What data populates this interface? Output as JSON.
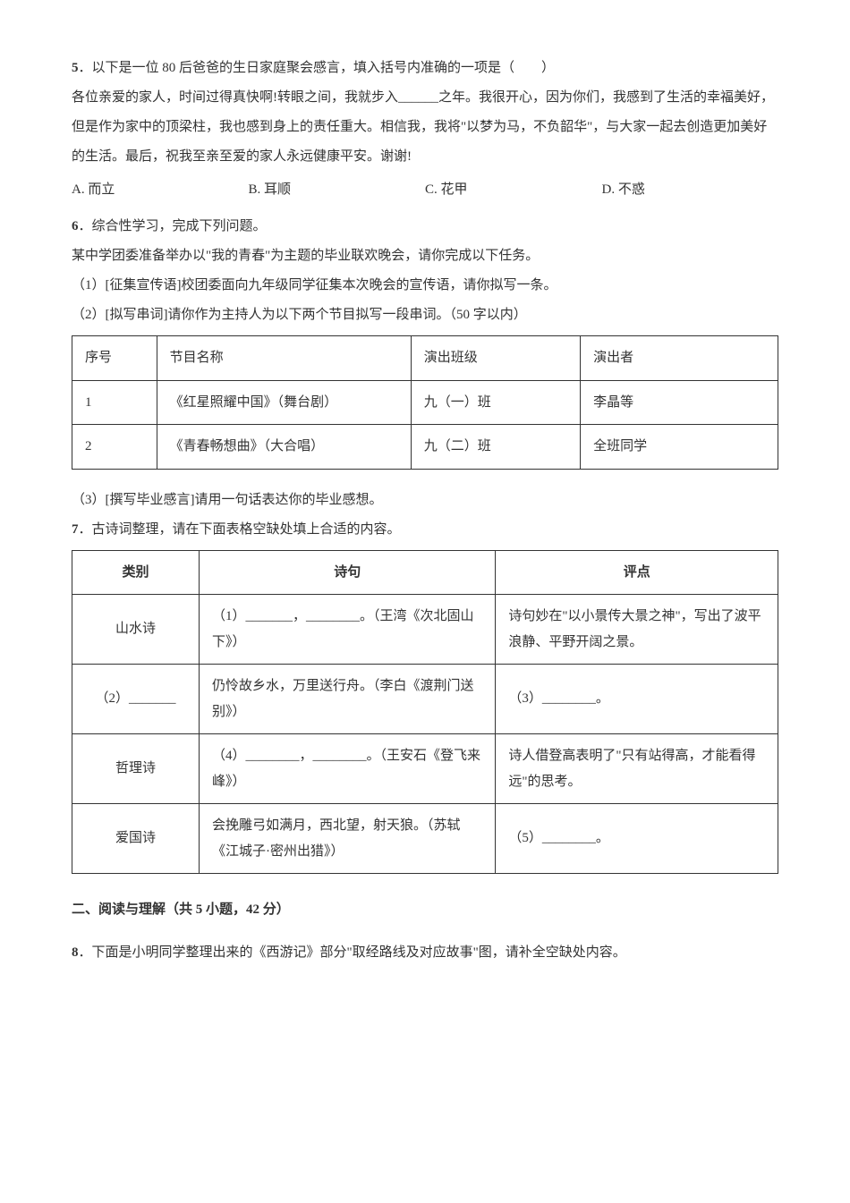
{
  "q5": {
    "num": "5",
    "stem": "．以下是一位 80 后爸爸的生日家庭聚会感言，填入括号内准确的一项是（　　）",
    "passage_1": "各位亲爱的家人，时间过得真快啊!转眼之间，我就步入______之年。我很开心，因为你们，我感到了生活的幸福美好，但是作为家中的顶梁柱，我也感到身上的责任重大。相信我，我将\"以梦为马，不负韶华\"，与大家一起去创造更加美好的生活。最后，祝我至亲至爱的家人永远健康平安。谢谢!",
    "options": {
      "a": "A. 而立",
      "b": "B. 耳顺",
      "c": "C. 花甲",
      "d": "D. 不惑"
    }
  },
  "q6": {
    "num": "6",
    "stem": "．综合性学习，完成下列问题。",
    "intro": "某中学团委准备举办以\"我的青春\"为主题的毕业联欢晚会，请你完成以下任务。",
    "sub1": "（1）[征集宣传语]校团委面向九年级同学征集本次晚会的宣传语，请你拟写一条。",
    "sub2": "（2）[拟写串词]请你作为主持人为以下两个节目拟写一段串词。（50 字以内）",
    "table": {
      "headers": [
        "序号",
        "节目名称",
        "演出班级",
        "演出者"
      ],
      "rows": [
        [
          "1",
          "《红星照耀中国》（舞台剧）",
          "九（一）班",
          "李晶等"
        ],
        [
          "2",
          "《青春畅想曲》（大合唱）",
          "九（二）班",
          "全班同学"
        ]
      ]
    },
    "sub3": "（3）[撰写毕业感言]请用一句话表达你的毕业感想。"
  },
  "q7": {
    "num": "7",
    "stem": "．古诗词整理，请在下面表格空缺处填上合适的内容。",
    "table": {
      "headers": [
        "类别",
        "诗句",
        "评点"
      ],
      "rows": [
        {
          "cat": "山水诗",
          "verse": "（1）_______，________。（王湾《次北固山下》）",
          "note": "诗句妙在\"以小景传大景之神\"，写出了波平浪静、平野开阔之景。"
        },
        {
          "cat": "（2）_______",
          "verse": "仍怜故乡水，万里送行舟。（李白《渡荆门送别》）",
          "note": "（3）________。"
        },
        {
          "cat": "哲理诗",
          "verse": "（4）________，________。（王安石《登飞来峰》）",
          "note": "诗人借登高表明了\"只有站得高，才能看得远\"的思考。"
        },
        {
          "cat": "爱国诗",
          "verse": "会挽雕弓如满月，西北望，射天狼。（苏轼《江城子·密州出猎》）",
          "note": "（5）________。"
        }
      ]
    }
  },
  "section2": {
    "title": "二、阅读与理解（共 5 小题，42 分）"
  },
  "q8": {
    "num": "8",
    "stem": "．下面是小明同学整理出来的《西游记》部分\"取经路线及对应故事\"图，请补全空缺处内容。"
  }
}
